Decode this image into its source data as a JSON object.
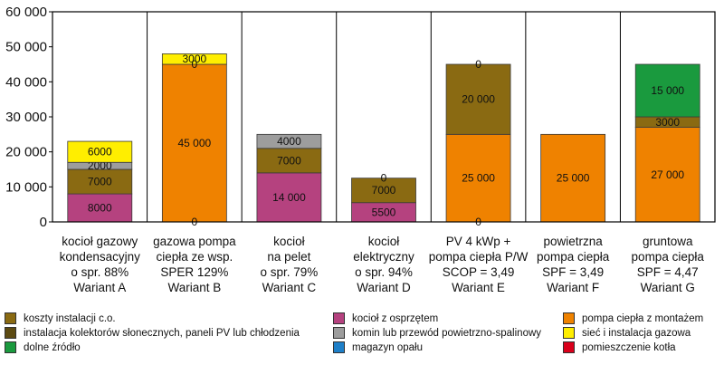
{
  "chart_data": {
    "type": "bar",
    "stacked": true,
    "ylim": [
      0,
      60000
    ],
    "y_ticks": [
      "0",
      "10 000",
      "20 000",
      "30 000",
      "40 000",
      "50 000",
      "60 000"
    ],
    "grid": "vertical separators between categories",
    "legend_placement": "bottom",
    "categories": [
      [
        "kocioł gazowy",
        "kondensacyjny",
        "o spr. 88%",
        "Wariant A"
      ],
      [
        "gazowa pompa",
        "ciepła ze wsp.",
        "SPER 129%",
        "Wariant B"
      ],
      [
        "kocioł",
        "na pelet",
        "o spr. 79%",
        "Wariant C"
      ],
      [
        "kocioł",
        "elektryczny",
        "o spr. 94%",
        "Wariant D"
      ],
      [
        "PV 4 kWp +",
        "pompa ciepła P/W",
        "SCOP = 3,49",
        "Wariant E"
      ],
      [
        "powietrzna",
        "pompa ciepła",
        "SPF = 3,49",
        "Wariant F"
      ],
      [
        "gruntowa",
        "pompa ciepła",
        "SPF = 4,47",
        "Wariant G"
      ]
    ],
    "series": [
      {
        "key": "kociol",
        "color": "#b5427f",
        "values": [
          8000,
          null,
          14000,
          5500,
          null,
          null,
          null
        ],
        "labels": [
          "8000",
          "",
          "14 000",
          "5500",
          "",
          "",
          ""
        ]
      },
      {
        "key": "pompa",
        "color": "#ef8200",
        "values": [
          null,
          45000,
          null,
          null,
          25000,
          25000,
          27000
        ],
        "labels": [
          "",
          "45 000",
          "",
          "",
          "25 000",
          "25 000",
          "27 000"
        ]
      },
      {
        "key": "instalacja_kol",
        "color": "#8a6a12",
        "values": [
          7000,
          null,
          7000,
          7000,
          20000,
          null,
          3000
        ],
        "labels": [
          "7000",
          "",
          "7000",
          "7000",
          "20 000",
          "",
          "3000"
        ]
      },
      {
        "key": "komin",
        "color": "#9d9d9d",
        "values": [
          2000,
          null,
          4000,
          null,
          null,
          null,
          null
        ],
        "labels": [
          "2000",
          "",
          "4000",
          "",
          "",
          "",
          ""
        ]
      },
      {
        "key": "siec_gaz",
        "color": "#ffee00",
        "values": [
          6000,
          3000,
          null,
          null,
          null,
          null,
          null
        ],
        "labels": [
          "6000",
          "3000",
          "",
          "",
          "",
          "",
          ""
        ]
      },
      {
        "key": "dolne",
        "color": "#1a9a3e",
        "values": [
          null,
          null,
          null,
          null,
          null,
          null,
          15000
        ],
        "labels": [
          "",
          "",
          "",
          "",
          "",
          "",
          "15 000"
        ]
      }
    ],
    "zero_annotations": [
      {
        "category": 1,
        "y": 0,
        "label": "0"
      },
      {
        "category": 1,
        "y": 45000,
        "label": "0"
      },
      {
        "category": 3,
        "y": 12500,
        "label": "0"
      },
      {
        "category": 4,
        "y": 0,
        "label": "0"
      },
      {
        "category": 4,
        "y": 45000,
        "label": "0"
      }
    ],
    "legend": [
      {
        "label": "koszty instalacji c.o.",
        "color": "#8a6a12"
      },
      {
        "label": "kocioł z osprzętem",
        "color": "#b5427f"
      },
      {
        "label": "pompa ciepła z montażem",
        "color": "#ef8200"
      },
      {
        "label": "instalacja kolektorów słonecznych, paneli PV lub chłodzenia",
        "color": "#5c4a12"
      },
      {
        "label": "komin lub przewód powietrzno-spalinowy",
        "color": "#9d9d9d"
      },
      {
        "label": "sieć i instalacja gazowa",
        "color": "#ffee00"
      },
      {
        "label": "dolne źródło",
        "color": "#1a9a3e"
      },
      {
        "label": "magazyn opału",
        "color": "#1e7fc8"
      },
      {
        "label": "pomieszczenie kotła",
        "color": "#d9001b"
      }
    ]
  }
}
